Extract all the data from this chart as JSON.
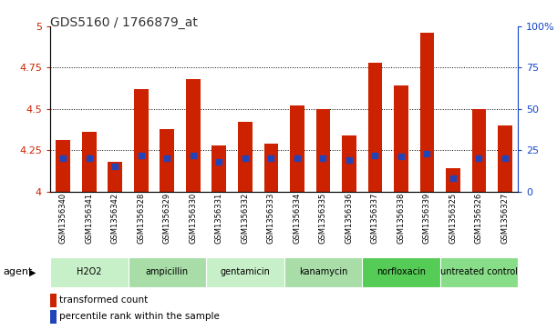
{
  "title": "GDS5160 / 1766879_at",
  "samples": [
    "GSM1356340",
    "GSM1356341",
    "GSM1356342",
    "GSM1356328",
    "GSM1356329",
    "GSM1356330",
    "GSM1356331",
    "GSM1356332",
    "GSM1356333",
    "GSM1356334",
    "GSM1356335",
    "GSM1356336",
    "GSM1356337",
    "GSM1356338",
    "GSM1356339",
    "GSM1356325",
    "GSM1356326",
    "GSM1356327"
  ],
  "red_values": [
    4.31,
    4.36,
    4.18,
    4.62,
    4.38,
    4.68,
    4.28,
    4.42,
    4.29,
    4.52,
    4.5,
    4.34,
    4.78,
    4.64,
    4.96,
    4.14,
    4.5,
    4.4
  ],
  "blue_pct": [
    20,
    20,
    15,
    22,
    20,
    22,
    18,
    20,
    20,
    20,
    20,
    19,
    22,
    21,
    23,
    8,
    20,
    20
  ],
  "groups": [
    {
      "label": "H2O2",
      "start": 0,
      "end": 3,
      "color": "#c8f0c8"
    },
    {
      "label": "ampicillin",
      "start": 3,
      "end": 6,
      "color": "#a8dda8"
    },
    {
      "label": "gentamicin",
      "start": 6,
      "end": 9,
      "color": "#c8f0c8"
    },
    {
      "label": "kanamycin",
      "start": 9,
      "end": 12,
      "color": "#a8dda8"
    },
    {
      "label": "norfloxacin",
      "start": 12,
      "end": 15,
      "color": "#55cc55"
    },
    {
      "label": "untreated control",
      "start": 15,
      "end": 18,
      "color": "#88dd88"
    }
  ],
  "ymin": 4.0,
  "ymax": 5.0,
  "yticks": [
    4.0,
    4.25,
    4.5,
    4.75,
    5.0
  ],
  "ytick_labels": [
    "4",
    "4.25",
    "4.5",
    "4.75",
    "5"
  ],
  "right_yticks": [
    0,
    25,
    50,
    75,
    100
  ],
  "right_ytick_labels": [
    "0",
    "25",
    "50",
    "75",
    "100%"
  ],
  "bar_color": "#cc2200",
  "blue_color": "#2244bb",
  "bg_color": "#ffffff",
  "bar_width": 0.55,
  "title_fontsize": 10,
  "left_tick_color": "#cc2200",
  "right_tick_color": "#1144cc"
}
